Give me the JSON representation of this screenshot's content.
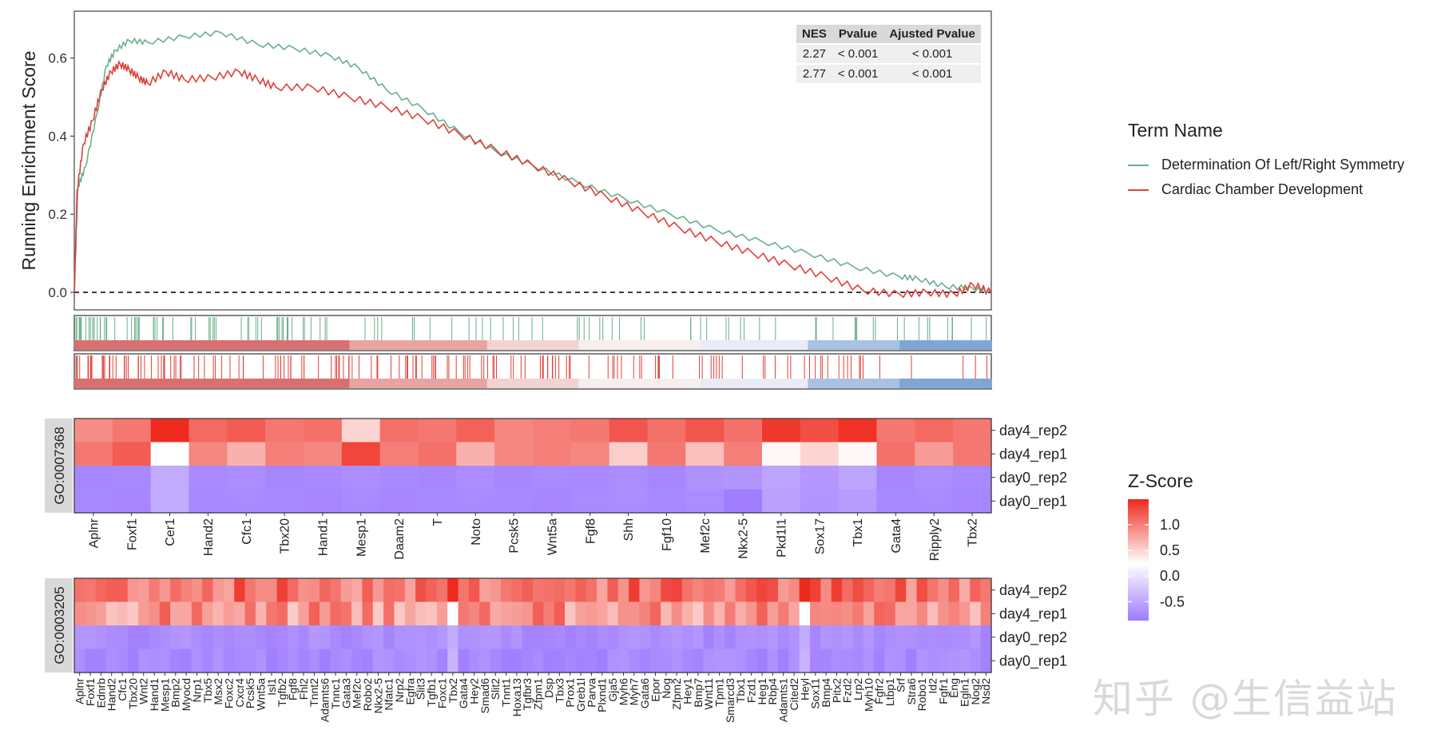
{
  "chart_data": [
    {
      "type": "line",
      "title": "",
      "xlabel": "",
      "ylabel": "Running Enrichment Score",
      "yticks": [
        "0.0",
        "0.2",
        "0.4",
        "0.6"
      ],
      "ylim": [
        -0.045,
        0.72
      ],
      "xlim": [
        0,
        1
      ],
      "reference_line": 0,
      "legend_title": "Term Name",
      "series": [
        {
          "name": "Determination Of Left/Right Symmetry",
          "color": "#6aaf8a",
          "x": [
            0,
            0.004,
            0.012,
            0.025,
            0.035,
            0.045,
            0.06,
            0.08,
            0.12,
            0.16,
            0.2,
            0.24,
            0.28,
            0.31,
            0.34,
            0.38,
            0.42,
            0.46,
            0.5,
            0.55,
            0.6,
            0.65,
            0.7,
            0.75,
            0.8,
            0.85,
            0.9,
            0.92,
            0.95,
            0.98,
            1.0
          ],
          "y": [
            0.0,
            0.27,
            0.32,
            0.46,
            0.58,
            0.62,
            0.645,
            0.64,
            0.655,
            0.665,
            0.635,
            0.625,
            0.605,
            0.575,
            0.52,
            0.47,
            0.41,
            0.36,
            0.325,
            0.28,
            0.24,
            0.2,
            0.16,
            0.13,
            0.1,
            0.065,
            0.04,
            0.035,
            0.015,
            0.01,
            0.0
          ]
        },
        {
          "name": "Cardiac Chamber Development",
          "color": "#e0403a",
          "x": [
            0,
            0.003,
            0.01,
            0.02,
            0.03,
            0.04,
            0.05,
            0.06,
            0.07,
            0.08,
            0.1,
            0.12,
            0.15,
            0.18,
            0.2,
            0.22,
            0.26,
            0.3,
            0.34,
            0.38,
            0.42,
            0.46,
            0.5,
            0.54,
            0.58,
            0.62,
            0.66,
            0.7,
            0.74,
            0.78,
            0.82,
            0.86,
            0.9,
            0.93,
            0.96,
            0.98,
            1.0
          ],
          "y": [
            0.0,
            0.26,
            0.38,
            0.44,
            0.52,
            0.565,
            0.585,
            0.57,
            0.55,
            0.535,
            0.565,
            0.545,
            0.55,
            0.565,
            0.545,
            0.525,
            0.525,
            0.5,
            0.475,
            0.445,
            0.405,
            0.365,
            0.325,
            0.285,
            0.245,
            0.205,
            0.165,
            0.13,
            0.1,
            0.07,
            0.04,
            0.005,
            -0.005,
            0.0,
            -0.005,
            0.02,
            0.0
          ]
        }
      ]
    },
    {
      "type": "table",
      "columns": [
        "NES",
        "Pvalue",
        "Ajusted Pvalue"
      ],
      "rows": [
        [
          "2.27",
          "< 0.001",
          "< 0.001"
        ],
        [
          "2.77",
          "< 0.001",
          "< 0.001"
        ]
      ]
    },
    {
      "type": "heatmap",
      "facet_label": "GO:0007368",
      "rows": [
        "day4_rep2",
        "day4_rep1",
        "day0_rep2",
        "day0_rep1"
      ],
      "genes": [
        "Aplnr",
        "Foxf1",
        "Cer1",
        "Hand2",
        "Cfc1",
        "Tbx20",
        "Hand1",
        "Mesp1",
        "Daam2",
        "T",
        "Noto",
        "Pcsk5",
        "Wnt5a",
        "Fgf8",
        "Shh",
        "Fgf10",
        "Mef2c",
        "Nkx2-5",
        "Pkd1l1",
        "Sox17",
        "Tbx1",
        "Gata4",
        "Ripply2",
        "Tbx2"
      ],
      "legend_title": "Z-Score",
      "color_ticks": [
        "1.0",
        "0.5",
        "0.0",
        "-0.5"
      ],
      "color_range": [
        -0.87,
        1.5
      ],
      "values": [
        [
          0.8,
          0.95,
          1.5,
          1.05,
          1.15,
          0.95,
          1.0,
          0.3,
          1.0,
          0.95,
          1.1,
          0.85,
          0.9,
          0.95,
          1.2,
          1.0,
          1.2,
          1.0,
          1.4,
          1.25,
          1.45,
          0.95,
          1.05,
          0.95
        ],
        [
          0.95,
          1.15,
          0.0,
          0.85,
          0.55,
          0.9,
          0.85,
          1.3,
          0.9,
          1.0,
          0.55,
          0.85,
          0.9,
          0.85,
          0.35,
          0.95,
          0.45,
          0.9,
          0.05,
          0.3,
          0.05,
          1.0,
          0.7,
          0.95
        ],
        [
          -0.8,
          -0.78,
          -0.55,
          -0.77,
          -0.75,
          -0.8,
          -0.78,
          -0.75,
          -0.78,
          -0.8,
          -0.75,
          -0.8,
          -0.77,
          -0.78,
          -0.75,
          -0.8,
          -0.72,
          -0.7,
          -0.6,
          -0.68,
          -0.6,
          -0.8,
          -0.75,
          -0.78
        ],
        [
          -0.78,
          -0.8,
          -0.55,
          -0.78,
          -0.77,
          -0.78,
          -0.8,
          -0.77,
          -0.8,
          -0.78,
          -0.77,
          -0.78,
          -0.8,
          -0.77,
          -0.75,
          -0.78,
          -0.75,
          -0.85,
          -0.62,
          -0.7,
          -0.65,
          -0.78,
          -0.77,
          -0.8
        ]
      ]
    },
    {
      "type": "heatmap",
      "facet_label": "GO:0003205",
      "rows": [
        "day4_rep2",
        "day4_rep1",
        "day0_rep2",
        "day0_rep1"
      ],
      "genes": [
        "Aplnr",
        "Foxf1",
        "Ednrb",
        "Hand2",
        "Cfc1",
        "Tbx20",
        "Wnt2",
        "Hand1",
        "Mesp1",
        "Bmp2",
        "Myocd",
        "Nrp1",
        "Tbx5",
        "Msx2",
        "Foxc2",
        "Cxcr4",
        "Pcsk5",
        "Wnt5a",
        "Isl1",
        "Tgfb2",
        "Fgf8",
        "Fhl2",
        "Tnnt2",
        "Adamts6",
        "Tnnc1",
        "Gata3",
        "Mef2c",
        "Robo2",
        "Nkx2-5",
        "Nfatc1",
        "Nrp2",
        "Egfra",
        "Slit3",
        "Tgfb1",
        "Foxc1",
        "Tbx2",
        "Gata4",
        "Hey2",
        "Smad6",
        "Slit2",
        "Tnnt1",
        "Hoxa13",
        "Tgfbr3",
        "Zfpm1",
        "Dsp",
        "Tbx3",
        "Prox1",
        "Greb1l",
        "Parva",
        "Plxnd1",
        "Gja5",
        "Myh6",
        "Myh7",
        "Gata6",
        "Epor",
        "Nog",
        "Zfpm2",
        "Hey1",
        "Bmp7",
        "Wnt11",
        "Tpm1",
        "Smarcd3",
        "Tbx1",
        "Fzd1",
        "Heg1",
        "Rbp4",
        "Adamts1",
        "Cited2",
        "Heyl",
        "Sox11",
        "Bmp4",
        "Pitx2",
        "Fzd2",
        "Lrp2",
        "Myh10",
        "Fgfr2",
        "Ltbp1",
        "Srf",
        "Stra6",
        "Robo1",
        "Id2",
        "Fgfr1",
        "Eng",
        "Egln1",
        "Nog2",
        "Nsd2"
      ],
      "pattern": "day4 rows high (about 0.5 to 1.5), day0 rows low (about -0.7 to -0.85)"
    }
  ]
}
